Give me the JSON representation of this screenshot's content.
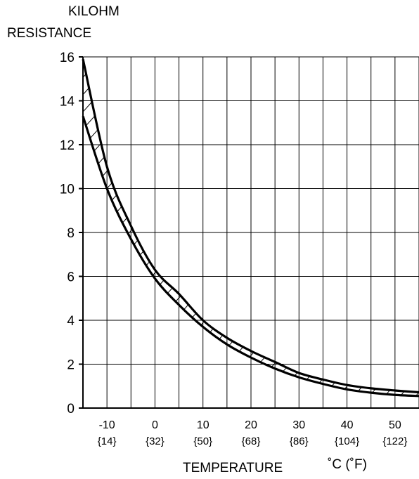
{
  "chart_data": {
    "type": "area",
    "ylabel_lines": [
      "KILOHM",
      "RESISTANCE"
    ],
    "xlabel": "TEMPERATURE",
    "xunit": "˚C (˚F)",
    "xlim": [
      -15,
      55
    ],
    "ylim": [
      0,
      16
    ],
    "grid": true,
    "x_gridlines": [
      -15,
      -10,
      -5,
      0,
      5,
      10,
      15,
      20,
      25,
      30,
      35,
      40,
      45,
      50,
      55
    ],
    "y_ticks": [
      0,
      2,
      4,
      6,
      8,
      10,
      12,
      14,
      16
    ],
    "x_tick_labels": [
      {
        "c": -10,
        "label": "-10",
        "f_label": "{14}"
      },
      {
        "c": 0,
        "label": "0",
        "f_label": "{32}"
      },
      {
        "c": 10,
        "label": "10",
        "f_label": "{50}"
      },
      {
        "c": 20,
        "label": "20",
        "f_label": "{68}"
      },
      {
        "c": 30,
        "label": "30",
        "f_label": "{86}"
      },
      {
        "c": 40,
        "label": "40",
        "f_label": "{104}"
      },
      {
        "c": 50,
        "label": "50",
        "f_label": "{122}"
      }
    ],
    "band": {
      "upper": {
        "x": [
          -15,
          -10,
          -5,
          0,
          5,
          10,
          15,
          20,
          25,
          30,
          35,
          40,
          45,
          50,
          55
        ],
        "y": [
          15.9,
          11.0,
          8.3,
          6.3,
          5.2,
          4.0,
          3.2,
          2.6,
          2.1,
          1.6,
          1.3,
          1.05,
          0.9,
          0.8,
          0.72
        ]
      },
      "lower": {
        "x": [
          -15,
          -10,
          -5,
          0,
          5,
          10,
          15,
          20,
          25,
          30,
          35,
          40,
          45,
          50,
          55
        ],
        "y": [
          13.3,
          10.0,
          7.7,
          5.9,
          4.7,
          3.7,
          2.9,
          2.3,
          1.8,
          1.4,
          1.1,
          0.85,
          0.7,
          0.6,
          0.55
        ]
      }
    }
  }
}
